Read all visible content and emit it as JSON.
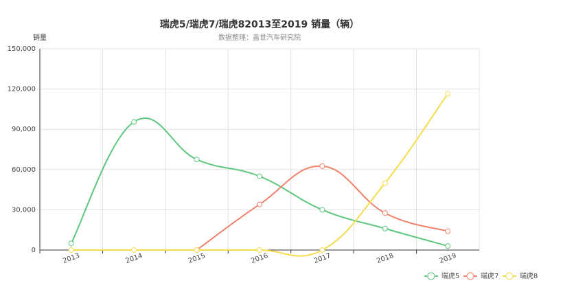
{
  "chart_data": {
    "type": "line",
    "title": "瑞虎5/瑞虎7/瑞虎82013至2019 销量（辆）",
    "subtitle": "数据整理：盖世汽车研究院",
    "y_axis_label": "销量",
    "categories": [
      "2013",
      "2014",
      "2015",
      "2016",
      "2017",
      "2018",
      "2019"
    ],
    "series": [
      {
        "name": "瑞虎5",
        "color": "#5cc77d",
        "values": [
          5000,
          95500,
          67500,
          55000,
          30000,
          16000,
          3000
        ]
      },
      {
        "name": "瑞虎7",
        "color": "#f3806a",
        "values": [
          null,
          null,
          0,
          34000,
          62500,
          27500,
          14000
        ]
      },
      {
        "name": "瑞虎8",
        "color": "#f6dc4c",
        "values": [
          0,
          0,
          0,
          0,
          0,
          50000,
          116500
        ]
      }
    ],
    "ylim": [
      0,
      150000
    ],
    "yticks": [
      0,
      {
        "value": 30000,
        "label": "30,000"
      },
      {
        "value": 60000,
        "label": "60,000"
      },
      {
        "value": 90000,
        "label": "90,000"
      },
      {
        "value": 120000,
        "label": "120,000"
      },
      {
        "value": 150000,
        "label": "150,000"
      }
    ],
    "grid": true,
    "smooth": true,
    "legend": "bottom-right"
  }
}
